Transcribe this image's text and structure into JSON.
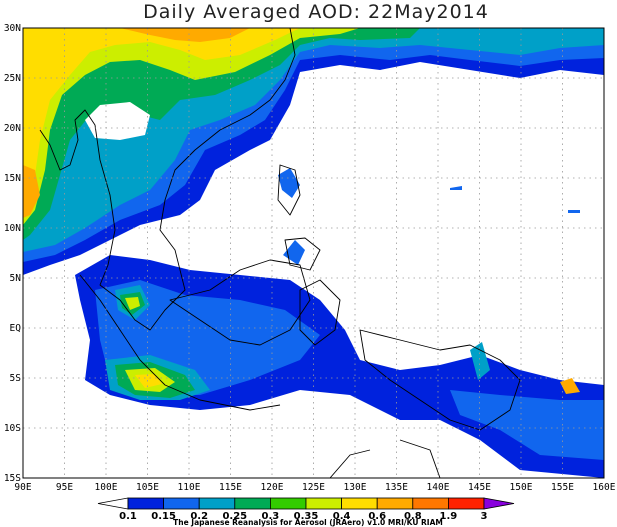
{
  "title": "Daily Averaged AOD: 22May2014",
  "longitude_ticks": [
    "90E",
    "95E",
    "100E",
    "105E",
    "110E",
    "115E",
    "120E",
    "125E",
    "130E",
    "135E",
    "140E",
    "145E",
    "150E",
    "155E",
    "160E"
  ],
  "latitude_ticks": [
    "30N",
    "25N",
    "20N",
    "15N",
    "10N",
    "5N",
    "EQ",
    "5S",
    "10S",
    "15S"
  ],
  "colorbar": {
    "levels": [
      "0.1",
      "0.15",
      "0.2",
      "0.25",
      "0.3",
      "0.35",
      "0.4",
      "0.6",
      "0.8",
      "1.9",
      "3"
    ],
    "colors": [
      "#0022dd",
      "#1166ee",
      "#00a0c8",
      "#00aa55",
      "#33cc00",
      "#ccee00",
      "#ffdd00",
      "#ffaa00",
      "#ff7700",
      "#ff2200",
      "#8800dd"
    ]
  },
  "credit": "The Japanese Reanalysis for Aerosol (JRAero) v1.0 MRI/KU RIAM"
}
